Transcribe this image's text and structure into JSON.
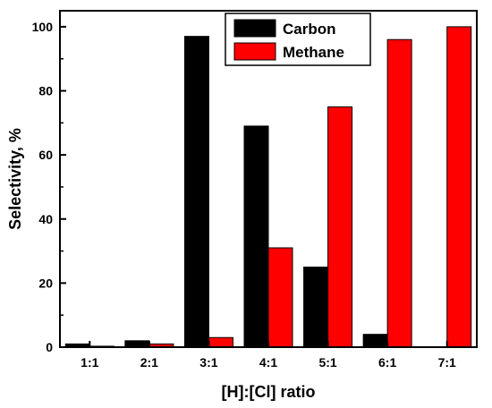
{
  "chart_data": {
    "type": "bar",
    "categories": [
      "1:1",
      "2:1",
      "3:1",
      "4:1",
      "5:1",
      "6:1",
      "7:1"
    ],
    "series": [
      {
        "name": "Carbon",
        "color": "#000000",
        "values": [
          1,
          2,
          97,
          69,
          25,
          4,
          0
        ]
      },
      {
        "name": "Methane",
        "color": "#ff0000",
        "values": [
          0.3,
          1,
          3,
          31,
          75,
          96,
          100
        ]
      }
    ],
    "xlabel": "[H]:[Cl] ratio",
    "ylabel": "Selectivity, %",
    "ylim": [
      0,
      105
    ],
    "yticks": [
      "0",
      "20",
      "40",
      "60",
      "80",
      "100"
    ],
    "grid": false,
    "legend_position": "top-right"
  }
}
